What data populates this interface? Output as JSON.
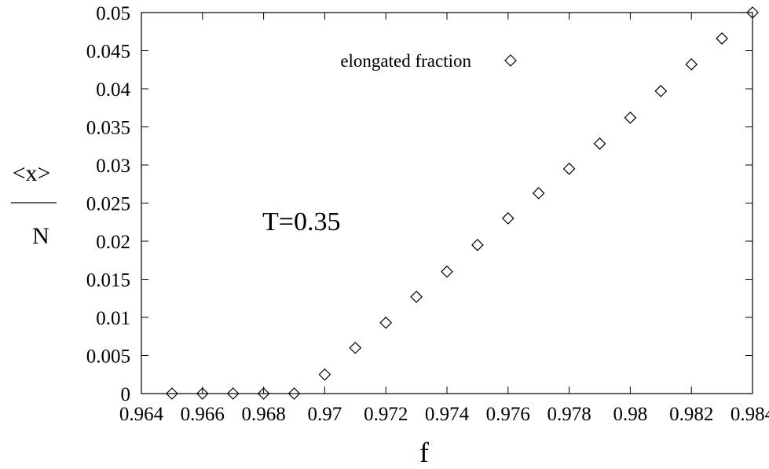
{
  "chart_data": {
    "type": "scatter",
    "marker": "diamond",
    "xlabel": "f",
    "ylabel": {
      "numerator": "<x>",
      "denominator": "N"
    },
    "xlim": [
      0.964,
      0.984
    ],
    "ylim": [
      0,
      0.05
    ],
    "xticks": [
      "0.964",
      "0.966",
      "0.968",
      "0.97",
      "0.972",
      "0.974",
      "0.976",
      "0.978",
      "0.98",
      "0.982",
      "0.984"
    ],
    "yticks": [
      "0",
      "0.005",
      "0.01",
      "0.015",
      "0.02",
      "0.025",
      "0.03",
      "0.035",
      "0.04",
      "0.045",
      "0.05"
    ],
    "grid": false,
    "legend_position": "top-right",
    "annotation": "T=0.35",
    "series": [
      {
        "name": "elongated fraction",
        "x": [
          0.965,
          0.966,
          0.967,
          0.968,
          0.969,
          0.97,
          0.971,
          0.972,
          0.973,
          0.974,
          0.975,
          0.976,
          0.977,
          0.978,
          0.979,
          0.98,
          0.981,
          0.982,
          0.983,
          0.984
        ],
        "y": [
          0.0,
          0.0,
          0.0,
          0.0,
          0.0,
          0.0025,
          0.006,
          0.0093,
          0.0127,
          0.016,
          0.0195,
          0.023,
          0.0263,
          0.0295,
          0.0328,
          0.0362,
          0.0397,
          0.0432,
          0.0466,
          0.05
        ]
      }
    ]
  }
}
